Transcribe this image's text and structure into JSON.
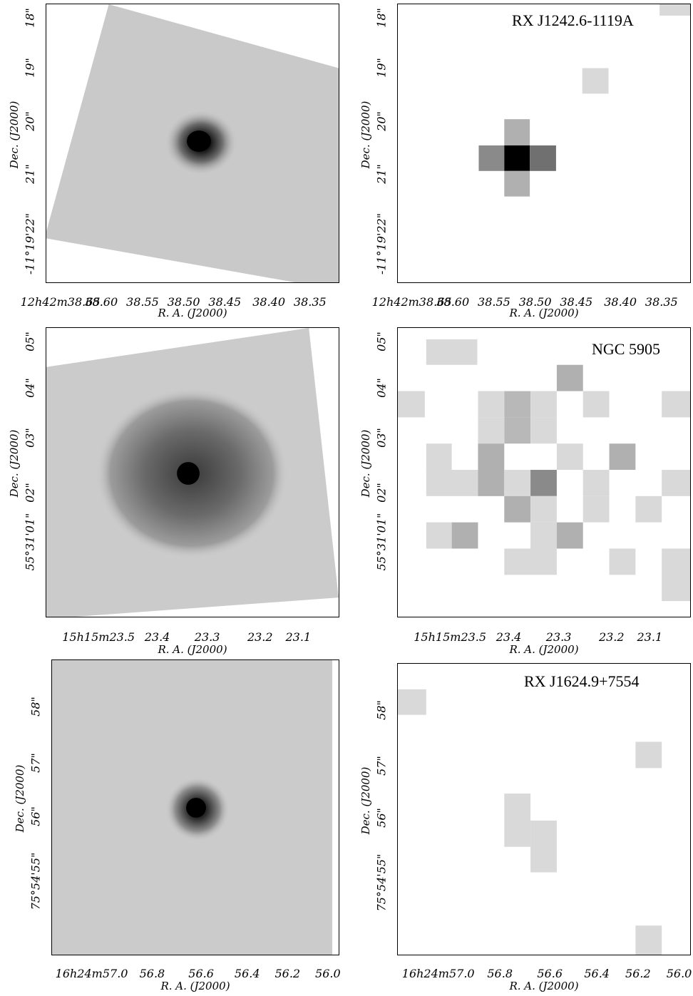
{
  "rows": [
    {
      "object_name": "",
      "ra_ticks": [
        "12h42m38.65",
        "38.60",
        "38.55",
        "38.50",
        "38.45",
        "38.40",
        "38.35"
      ],
      "dec_ticks": [
        "18\"",
        "19\"",
        "20\"",
        "21\"",
        "-11°19'22\""
      ],
      "xlabel": "R. A. (J2000)",
      "ylabel": "Dec. (J2000)"
    },
    {
      "object_name": "NGC 5905",
      "ra_ticks": [
        "15h15m23.5",
        "23.4",
        "23.3",
        "23.2",
        "23.1"
      ],
      "dec_ticks": [
        "05\"",
        "04\"",
        "03\"",
        "02\"",
        "55°31'01\""
      ],
      "xlabel": "R. A. (J2000)",
      "ylabel": "Dec. (J2000)"
    },
    {
      "object_name": "RX J1624.9+7554",
      "ra_ticks": [
        "16h24m57.0",
        "56.8",
        "56.6",
        "56.4",
        "56.2",
        "56.0"
      ],
      "dec_ticks": [
        "58\"",
        "57\"",
        "56\"",
        "75°54'55\""
      ],
      "xlabel": "R. A. (J2000)",
      "ylabel": "Dec. (J2000)"
    }
  ],
  "top_right_title": "RX J1242.6-1119A",
  "colors": {
    "background": "#ffffff",
    "frame": "#000000",
    "image_gray": "#c8c8c8"
  }
}
